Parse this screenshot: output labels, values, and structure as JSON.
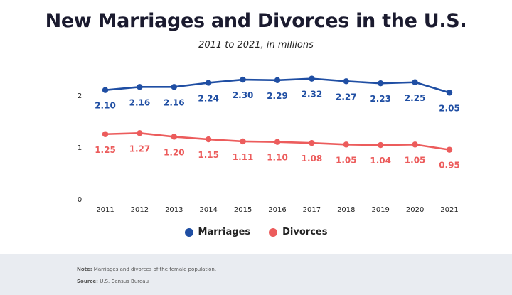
{
  "chart_data": {
    "type": "line",
    "title": "New Marriages and Divorces in the U.S.",
    "subtitle": "2011 to 2021, in millions",
    "categories": [
      "2011",
      "2012",
      "2013",
      "2014",
      "2015",
      "2016",
      "2017",
      "2018",
      "2019",
      "2020",
      "2021"
    ],
    "series": [
      {
        "name": "Marriages",
        "color": "#1f4ea3",
        "values": [
          2.1,
          2.16,
          2.16,
          2.24,
          2.3,
          2.29,
          2.32,
          2.27,
          2.23,
          2.25,
          2.05
        ],
        "labels": [
          "2.10",
          "2.16",
          "2.16",
          "2.24",
          "2.30",
          "2.29",
          "2.32",
          "2.27",
          "2.23",
          "2.25",
          "2.05"
        ]
      },
      {
        "name": "Divorces",
        "color": "#ec5c5c",
        "values": [
          1.25,
          1.27,
          1.2,
          1.15,
          1.11,
          1.1,
          1.08,
          1.05,
          1.04,
          1.05,
          0.95
        ],
        "labels": [
          "1.25",
          "1.27",
          "1.20",
          "1.15",
          "1.11",
          "1.10",
          "1.08",
          "1.05",
          "1.04",
          "1.05",
          "0.95"
        ]
      }
    ],
    "yticks": [
      "0",
      "1",
      "2"
    ],
    "ylim": [
      0,
      2.45
    ],
    "grid": false,
    "legend_position": "bottom"
  },
  "footer": {
    "note_label": "Note:",
    "note_text": " Marriages and divorces of the female population.",
    "source_label": "Source:",
    "source_text": " U.S. Census Bureau"
  }
}
